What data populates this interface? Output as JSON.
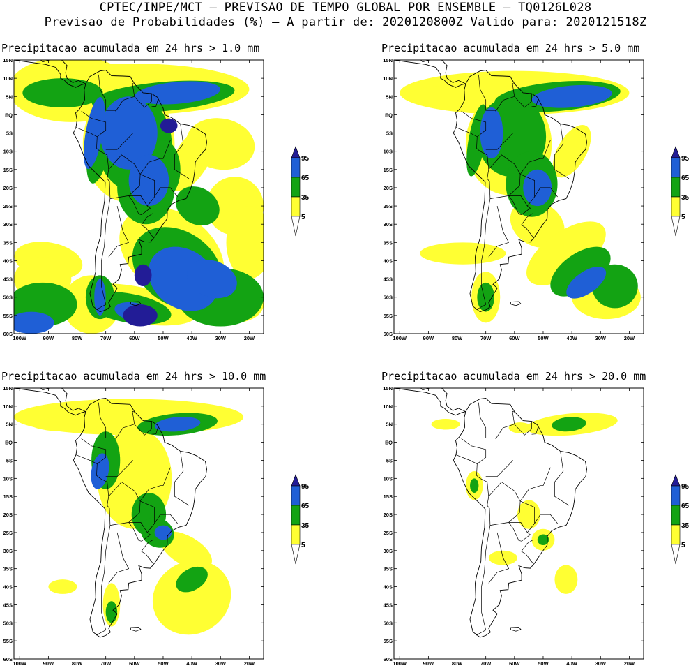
{
  "header": {
    "line1": "CPTEC/INPE/MCT — PREVISAO DE TEMPO GLOBAL POR ENSEMBLE — TQ0126L028",
    "line2": "Previsao de Probabilidades (%) —  A partir de: 2020120800Z  Valido para: 2020121518Z"
  },
  "colors": {
    "p5": "#ffff33",
    "p35": "#13a313",
    "p65": "#1f5fd6",
    "p95": "#221c96",
    "coast": "#000000"
  },
  "axes": {
    "lat_labels": [
      "15N",
      "10N",
      "5N",
      "EQ",
      "5S",
      "10S",
      "15S",
      "20S",
      "25S",
      "30S",
      "35S",
      "40S",
      "45S",
      "50S",
      "55S",
      "60S"
    ],
    "lon_labels": [
      "100W",
      "90W",
      "80W",
      "70W",
      "60W",
      "50W",
      "40W",
      "30W",
      "20W"
    ]
  },
  "legend": {
    "labels": [
      "95",
      "65",
      "35",
      "5"
    ]
  },
  "panels": [
    {
      "id": "p1",
      "title": "Precipitacao acumulada em 24 hrs > 1.0 mm"
    },
    {
      "id": "p2",
      "title": "Precipitacao acumulada em 24 hrs > 5.0 mm"
    },
    {
      "id": "p3",
      "title": "Precipitacao acumulada em 24 hrs > 10.0 mm"
    },
    {
      "id": "p4",
      "title": "Precipitacao acumulada em 24 hrs > 20.0 mm"
    }
  ]
}
